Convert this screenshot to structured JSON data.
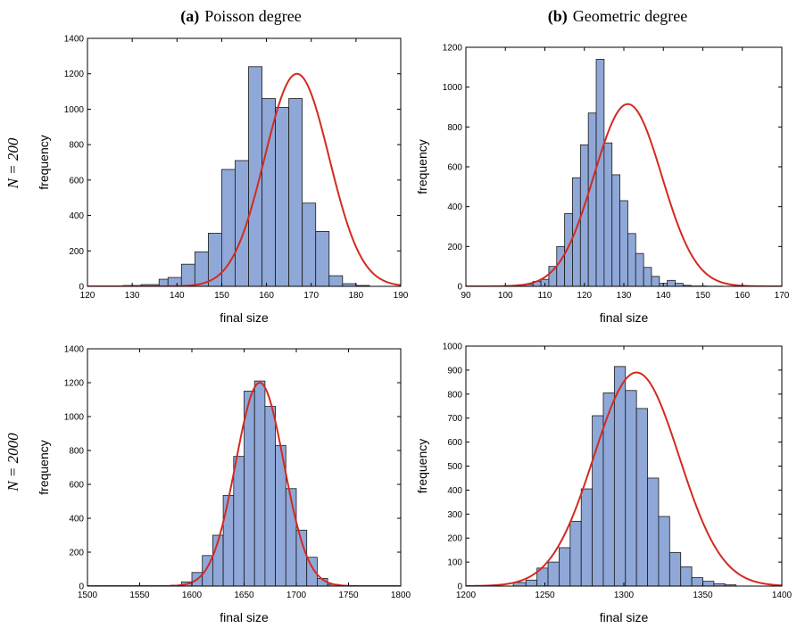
{
  "columns": [
    {
      "letter": "(a)",
      "label": "Poisson degree"
    },
    {
      "letter": "(b)",
      "label": "Geometric degree"
    }
  ],
  "rows": [
    {
      "label": "N = 200"
    },
    {
      "label": "N = 2000"
    }
  ],
  "colors": {
    "bar_fill": "#8fa8d8",
    "bar_edge": "#1a1a1a",
    "fit_curve": "#d42a20",
    "axes": "#000000"
  },
  "chart_data": [
    {
      "type": "bar",
      "panel": "(a) N = 200",
      "xlabel": "final size",
      "ylabel": "frequency",
      "xlim": [
        120,
        190
      ],
      "ylim": [
        0,
        1400
      ],
      "xticks": [
        120,
        130,
        140,
        150,
        160,
        170,
        180,
        190
      ],
      "yticks": [
        0,
        200,
        400,
        600,
        800,
        1000,
        1200,
        1400
      ],
      "bin_edges": [
        120,
        124,
        128,
        132,
        136,
        138,
        141,
        144,
        147,
        150,
        153,
        156,
        159,
        162,
        165,
        168,
        171,
        174,
        177,
        180,
        183,
        186,
        189
      ],
      "counts": [
        2,
        2,
        5,
        10,
        40,
        50,
        125,
        195,
        300,
        660,
        710,
        1240,
        1060,
        1010,
        1060,
        470,
        310,
        60,
        15,
        5,
        0,
        0
      ],
      "fit_curve": {
        "type": "normal",
        "mean": 166.8,
        "sd": 7.2,
        "peak": 1200
      }
    },
    {
      "type": "bar",
      "panel": "(b) N = 200",
      "xlabel": "final size",
      "ylabel": "frequency",
      "xlim": [
        90,
        170
      ],
      "ylim": [
        0,
        1200
      ],
      "xticks": [
        90,
        100,
        110,
        120,
        130,
        140,
        150,
        160,
        170
      ],
      "yticks": [
        0,
        200,
        400,
        600,
        800,
        1000,
        1200
      ],
      "bin_edges": [
        100,
        103,
        105,
        107,
        109,
        111,
        113,
        115,
        117,
        119,
        121,
        123,
        125,
        127,
        129,
        131,
        133,
        135,
        137,
        139,
        141,
        143,
        145,
        147,
        149,
        151,
        153,
        155
      ],
      "counts": [
        2,
        8,
        10,
        25,
        35,
        100,
        200,
        365,
        545,
        710,
        870,
        1140,
        720,
        560,
        430,
        265,
        165,
        95,
        50,
        15,
        30,
        15,
        5,
        2,
        2,
        1,
        1
      ],
      "fit_curve": {
        "type": "normal",
        "mean": 131,
        "sd": 8.6,
        "peak": 915
      }
    },
    {
      "type": "bar",
      "panel": "(a) N = 2000",
      "xlabel": "final size",
      "ylabel": "frequency",
      "xlim": [
        1500,
        1800
      ],
      "ylim": [
        0,
        1400
      ],
      "xticks": [
        1500,
        1550,
        1600,
        1650,
        1700,
        1750,
        1800
      ],
      "yticks": [
        0,
        200,
        400,
        600,
        800,
        1000,
        1200,
        1400
      ],
      "bin_edges": [
        1580,
        1590,
        1600,
        1610,
        1620,
        1630,
        1640,
        1650,
        1660,
        1670,
        1680,
        1690,
        1700,
        1710,
        1720,
        1730,
        1740
      ],
      "counts": [
        5,
        25,
        80,
        180,
        300,
        535,
        765,
        1150,
        1210,
        1060,
        830,
        575,
        330,
        170,
        45,
        10
      ],
      "fit_curve": {
        "type": "normal",
        "mean": 1665,
        "sd": 23,
        "peak": 1200
      }
    },
    {
      "type": "bar",
      "panel": "(b) N = 2000",
      "xlabel": "final size",
      "ylabel": "frequency",
      "xlim": [
        1200,
        1400
      ],
      "ylim": [
        0,
        1000
      ],
      "xticks": [
        1200,
        1250,
        1300,
        1350,
        1400
      ],
      "yticks": [
        0,
        100,
        200,
        300,
        400,
        500,
        600,
        700,
        800,
        900,
        1000
      ],
      "bin_edges": [
        1230,
        1238,
        1245,
        1252,
        1259,
        1266,
        1273,
        1280,
        1287,
        1294,
        1301,
        1308,
        1315,
        1322,
        1329,
        1336,
        1343,
        1350,
        1357,
        1364,
        1371
      ],
      "counts": [
        15,
        25,
        75,
        100,
        160,
        270,
        405,
        710,
        805,
        915,
        815,
        740,
        450,
        290,
        140,
        80,
        35,
        20,
        10,
        5
      ],
      "fit_curve": {
        "type": "normal",
        "mean": 1308,
        "sd": 27,
        "peak": 890
      }
    }
  ]
}
